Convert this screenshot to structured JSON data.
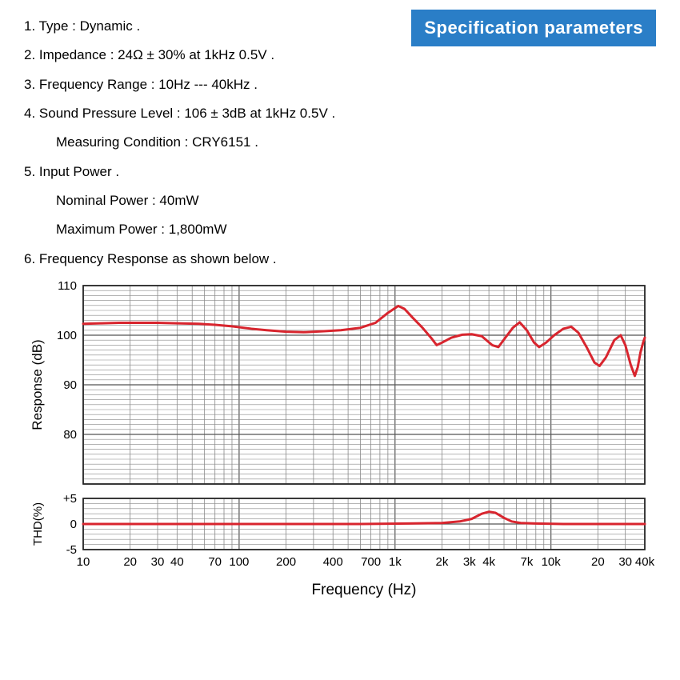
{
  "banner": {
    "text": "Specification parameters",
    "bg": "#2a7ec7",
    "fg": "#ffffff"
  },
  "specs": {
    "item1": "1. Type : Dynamic .",
    "item2": "2. Impedance : 24Ω ± 30% at 1kHz 0.5V .",
    "item3": "3. Frequency Range : 10Hz --- 40kHz .",
    "item4": "4. Sound Pressure Level : 106 ± 3dB at 1kHz 0.5V .",
    "item4a": "Measuring Condition : CRY6151 .",
    "item5": "5. Input Power .",
    "item5a": "Nominal Power : 40mW",
    "item5b": "Maximum Power : 1,800mW",
    "item6": "6. Frequency Response as shown below ."
  },
  "response_chart": {
    "type": "line-log-x",
    "ylabel": "Response (dB)",
    "ylim": [
      70,
      110
    ],
    "ytick_step": 10,
    "ytick_labels": [
      "80",
      "90",
      "100",
      "110"
    ],
    "xlim_log10": [
      1.0,
      4.602
    ],
    "line_color": "#d8252e",
    "line_width": 3,
    "grid_major_color": "#555555",
    "grid_minor_color": "#888888",
    "bg": "#ffffff",
    "label_fontsize": 17,
    "tick_fontsize": 15,
    "points": [
      [
        10,
        102.3
      ],
      [
        13,
        102.4
      ],
      [
        17,
        102.5
      ],
      [
        22,
        102.5
      ],
      [
        30,
        102.5
      ],
      [
        40,
        102.4
      ],
      [
        55,
        102.3
      ],
      [
        70,
        102.1
      ],
      [
        90,
        101.8
      ],
      [
        120,
        101.3
      ],
      [
        150,
        101.0
      ],
      [
        200,
        100.7
      ],
      [
        260,
        100.6
      ],
      [
        350,
        100.8
      ],
      [
        450,
        101.0
      ],
      [
        600,
        101.5
      ],
      [
        750,
        102.5
      ],
      [
        900,
        104.5
      ],
      [
        1050,
        105.9
      ],
      [
        1150,
        105.3
      ],
      [
        1300,
        103.5
      ],
      [
        1500,
        101.5
      ],
      [
        1700,
        99.5
      ],
      [
        1850,
        98.0
      ],
      [
        2000,
        98.5
      ],
      [
        2300,
        99.5
      ],
      [
        2700,
        100.1
      ],
      [
        3100,
        100.2
      ],
      [
        3600,
        99.8
      ],
      [
        4200,
        98.0
      ],
      [
        4600,
        97.6
      ],
      [
        5100,
        99.5
      ],
      [
        5700,
        101.5
      ],
      [
        6300,
        102.6
      ],
      [
        7000,
        101.0
      ],
      [
        7800,
        98.5
      ],
      [
        8400,
        97.6
      ],
      [
        9300,
        98.5
      ],
      [
        10500,
        100.0
      ],
      [
        12000,
        101.3
      ],
      [
        13500,
        101.7
      ],
      [
        15000,
        100.5
      ],
      [
        17000,
        97.5
      ],
      [
        19000,
        94.5
      ],
      [
        20500,
        93.8
      ],
      [
        22500,
        95.5
      ],
      [
        25500,
        99.0
      ],
      [
        28000,
        100.0
      ],
      [
        30000,
        98.0
      ],
      [
        32500,
        94.0
      ],
      [
        34500,
        91.8
      ],
      [
        36000,
        93.5
      ],
      [
        37500,
        96.5
      ],
      [
        39000,
        98.5
      ],
      [
        40000,
        99.5
      ]
    ]
  },
  "thd_chart": {
    "type": "line-log-x",
    "ylabel": "THD(%)",
    "ylim": [
      -5,
      5
    ],
    "ytick_labels": [
      "-5",
      "0",
      "+5"
    ],
    "line_color": "#d8252e",
    "line_width": 3,
    "points": [
      [
        10,
        0.0
      ],
      [
        20,
        0.0
      ],
      [
        40,
        0.0
      ],
      [
        80,
        0.0
      ],
      [
        150,
        0.0
      ],
      [
        300,
        0.0
      ],
      [
        600,
        0.0
      ],
      [
        1200,
        0.1
      ],
      [
        2000,
        0.2
      ],
      [
        2600,
        0.5
      ],
      [
        3100,
        1.0
      ],
      [
        3600,
        2.0
      ],
      [
        4000,
        2.4
      ],
      [
        4400,
        2.2
      ],
      [
        5000,
        1.2
      ],
      [
        5600,
        0.5
      ],
      [
        6400,
        0.2
      ],
      [
        8000,
        0.1
      ],
      [
        12000,
        0.0
      ],
      [
        20000,
        0.0
      ],
      [
        40000,
        0.0
      ]
    ]
  },
  "x_axis": {
    "label": "Frequency (Hz)",
    "ticks": [
      {
        "v": 10,
        "l": "10"
      },
      {
        "v": 20,
        "l": "20"
      },
      {
        "v": 30,
        "l": "30"
      },
      {
        "v": 40,
        "l": "40"
      },
      {
        "v": 70,
        "l": "70"
      },
      {
        "v": 100,
        "l": "100"
      },
      {
        "v": 200,
        "l": "200"
      },
      {
        "v": 400,
        "l": "400"
      },
      {
        "v": 700,
        "l": "700"
      },
      {
        "v": 1000,
        "l": "1k"
      },
      {
        "v": 2000,
        "l": "2k"
      },
      {
        "v": 3000,
        "l": "3k"
      },
      {
        "v": 4000,
        "l": "4k"
      },
      {
        "v": 7000,
        "l": "7k"
      },
      {
        "v": 10000,
        "l": "10k"
      },
      {
        "v": 20000,
        "l": "20"
      },
      {
        "v": 30000,
        "l": "30"
      },
      {
        "v": 40000,
        "l": "40k"
      }
    ],
    "log_grid_cycles": [
      [
        10,
        20,
        30,
        40,
        50,
        60,
        70,
        80,
        90
      ],
      [
        100,
        200,
        300,
        400,
        500,
        600,
        700,
        800,
        900
      ],
      [
        1000,
        2000,
        3000,
        4000,
        5000,
        6000,
        7000,
        8000,
        9000
      ],
      [
        10000,
        20000,
        30000,
        40000
      ]
    ]
  }
}
